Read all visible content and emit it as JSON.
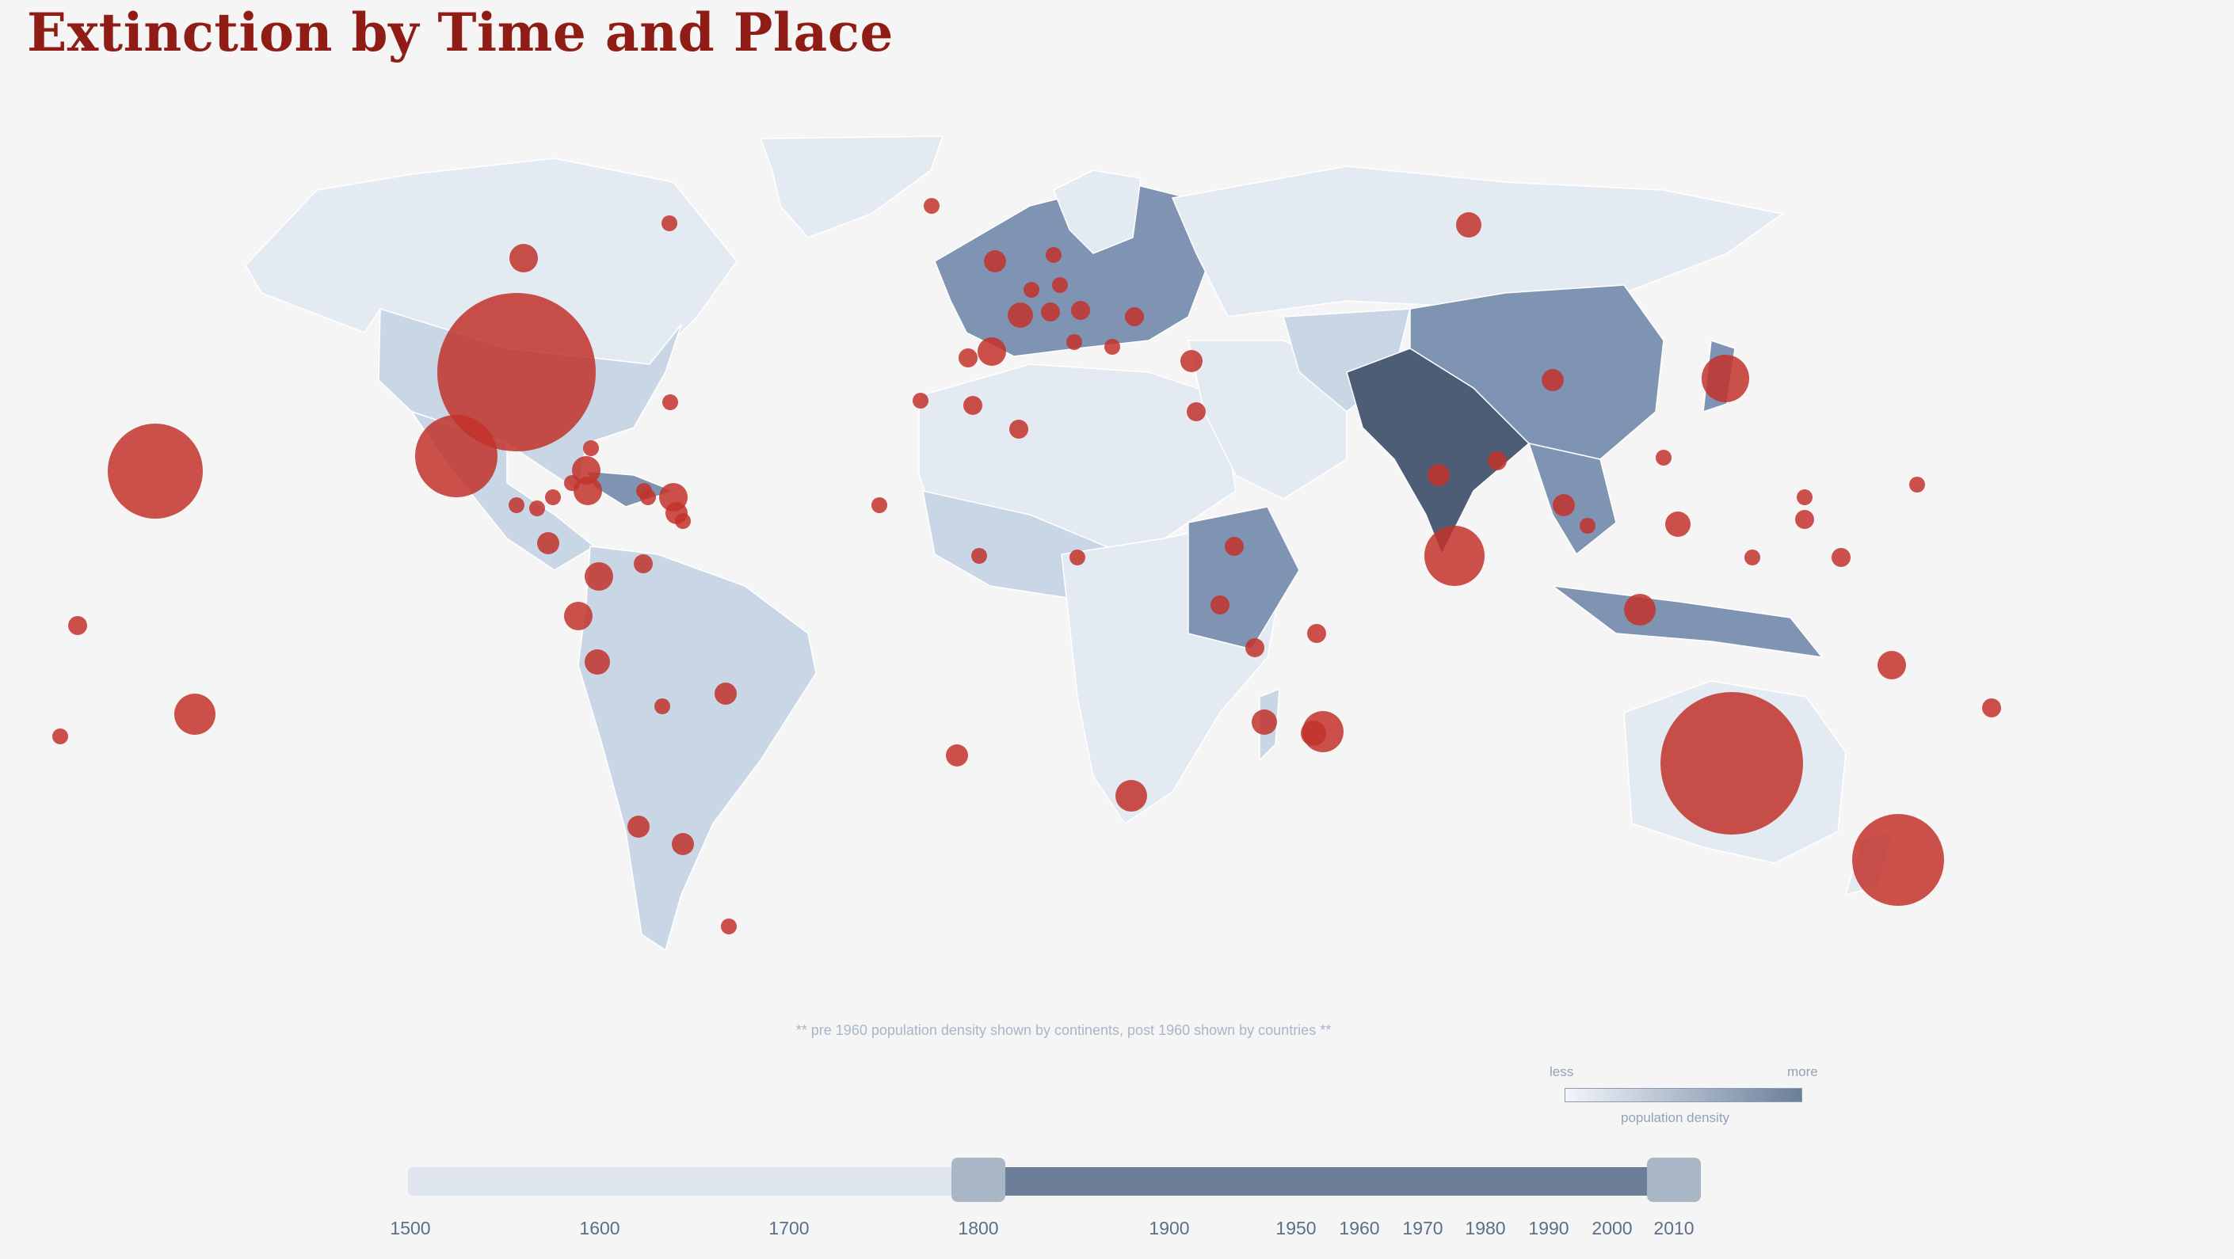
{
  "title": "Extinction by Time and Place",
  "note": "** pre 1960 population density shown by continents, post 1960 shown by countries **",
  "legend": {
    "less": "less",
    "more": "more",
    "caption": "population density",
    "color_low": "#f2f5fa",
    "color_high": "#6b7f9a"
  },
  "timeline": {
    "min": 1500,
    "max": 2020,
    "selected_start": 1800,
    "selected_end": 2010,
    "ticks": [
      "1500",
      "1600",
      "1700",
      "1800",
      "1900",
      "1950",
      "1960",
      "1970",
      "1980",
      "1990",
      "2000",
      "2010"
    ]
  },
  "colors": {
    "marker": "#c2322a",
    "title": "#8f1d16",
    "density_low": "#e4eaf2",
    "density_mid": "#c9d6e6",
    "density_high": "#7f94b2",
    "density_max": "#4d5d76"
  }
}
